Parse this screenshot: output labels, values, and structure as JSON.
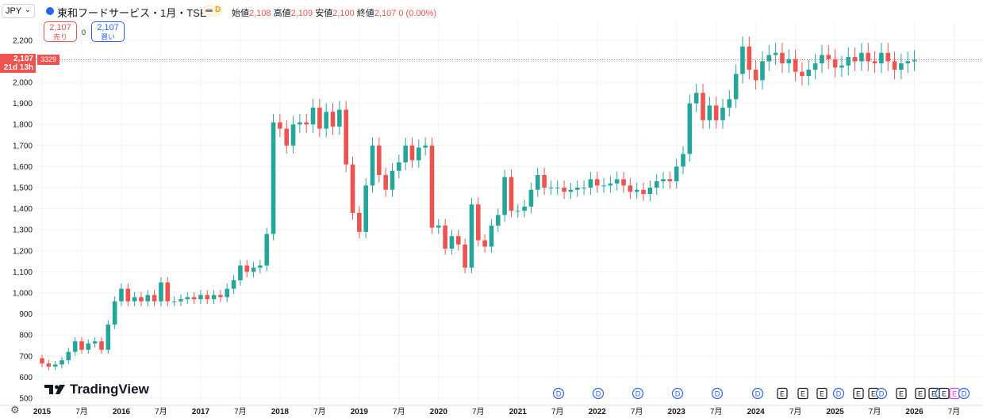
{
  "header": {
    "currency": "JPY",
    "symbol_title": "東和フードサービス・1月・TSE",
    "delay_letter": "D",
    "ohlc": {
      "open_label": "始値",
      "open": "2,108",
      "high_label": "高値",
      "high": "2,109",
      "low_label": "安値",
      "low": "2,100",
      "close_label": "終値",
      "close": "2,107",
      "change": "0 (0.00%)"
    }
  },
  "trade": {
    "sell_price": "2,107",
    "sell_label": "売り",
    "spread": "0",
    "buy_price": "2,107",
    "buy_label": "買い"
  },
  "price_tag": {
    "price": "2,107",
    "countdown": "21d 13h",
    "symbol_code": "3329"
  },
  "branding": {
    "logo_text": "TradingView"
  },
  "icons": {
    "settings": "gear-icon",
    "chevron": "chevron-down-icon",
    "symbol": "exchange-icon"
  },
  "colors": {
    "up": "#26a69a",
    "down": "#ef5350",
    "grid": "#f0f3fa",
    "dividend": "#2962ff",
    "earnings": "#131722",
    "future_earnings": "#e040fb"
  },
  "chart_data": {
    "type": "candlestick",
    "interval": "1M",
    "ylim": [
      500,
      2250
    ],
    "y_ticks": [
      500,
      600,
      700,
      800,
      900,
      1000,
      1100,
      1200,
      1300,
      1400,
      1500,
      1600,
      1700,
      1800,
      1900,
      2000,
      2100,
      2200
    ],
    "y_tick_labels": [
      "500",
      "600",
      "700",
      "800",
      "900",
      "1,000",
      "1,100",
      "1,200",
      "1,300",
      "1,400",
      "1,500",
      "1,600",
      "1,700",
      "1,800",
      "1,900",
      "2,000",
      "2,100",
      "2,200"
    ],
    "x_ticks": [
      {
        "label": "2015",
        "year": true
      },
      {
        "label": "7月",
        "year": false
      },
      {
        "label": "2016",
        "year": true
      },
      {
        "label": "7月",
        "year": false
      },
      {
        "label": "2017",
        "year": true
      },
      {
        "label": "7月",
        "year": false
      },
      {
        "label": "2018",
        "year": true
      },
      {
        "label": "7月",
        "year": false
      },
      {
        "label": "2019",
        "year": true
      },
      {
        "label": "7月",
        "year": false
      },
      {
        "label": "2020",
        "year": true
      },
      {
        "label": "7月",
        "year": false
      },
      {
        "label": "2021",
        "year": true
      },
      {
        "label": "7月",
        "year": false
      },
      {
        "label": "2022",
        "year": true
      },
      {
        "label": "7月",
        "year": false
      },
      {
        "label": "2023",
        "year": true
      },
      {
        "label": "7月",
        "year": false
      },
      {
        "label": "2024",
        "year": true
      },
      {
        "label": "7月",
        "year": false
      },
      {
        "label": "2025",
        "year": true
      },
      {
        "label": "7月",
        "year": false
      },
      {
        "label": "2026",
        "year": true
      },
      {
        "label": "7月",
        "year": false
      }
    ],
    "candle_closes": [
      665,
      650,
      660,
      680,
      720,
      770,
      730,
      760,
      770,
      730,
      850,
      960,
      1020,
      960,
      980,
      960,
      990,
      960,
      1050,
      960,
      960,
      970,
      980,
      970,
      990,
      970,
      990,
      980,
      1020,
      1060,
      1130,
      1100,
      1120,
      1130,
      1280,
      1810,
      1780,
      1700,
      1800,
      1810,
      1800,
      1880,
      1780,
      1860,
      1790,
      1870,
      1610,
      1380,
      1290,
      1510,
      1700,
      1560,
      1490,
      1580,
      1620,
      1700,
      1630,
      1690,
      1700,
      1310,
      1320,
      1210,
      1270,
      1230,
      1120,
      1420,
      1250,
      1220,
      1320,
      1370,
      1550,
      1390,
      1390,
      1410,
      1490,
      1560,
      1500,
      1500,
      1500,
      1480,
      1490,
      1500,
      1500,
      1540,
      1510,
      1510,
      1520,
      1540,
      1510,
      1480,
      1490,
      1470,
      1500,
      1530,
      1540,
      1530,
      1600,
      1660,
      1900,
      1950,
      1820,
      1890,
      1820,
      1880,
      1920,
      2040,
      2170,
      2060,
      2010,
      2100,
      2130,
      2140,
      2090,
      2110,
      2050,
      2030,
      2060,
      2090,
      2130,
      2110,
      2070,
      2080,
      2120,
      2100,
      2140,
      2100,
      2090,
      2140,
      2100,
      2060,
      2090,
      2100,
      2107
    ],
    "first_open": 690,
    "events": [
      {
        "type": "dividend",
        "label": "D"
      },
      {
        "type": "dividend",
        "label": "D"
      },
      {
        "type": "dividend",
        "label": "D"
      },
      {
        "type": "dividend",
        "label": "D"
      },
      {
        "type": "dividend",
        "label": "D"
      },
      {
        "type": "dividend",
        "label": "D"
      },
      {
        "type": "earnings",
        "label": "E"
      },
      {
        "type": "earnings",
        "label": "E"
      },
      {
        "type": "earnings",
        "label": "E"
      },
      {
        "type": "dividend",
        "label": "D"
      },
      {
        "type": "earnings",
        "label": "E"
      },
      {
        "type": "earnings",
        "label": "E"
      },
      {
        "type": "dividend",
        "label": "D"
      },
      {
        "type": "earnings",
        "label": "E"
      },
      {
        "type": "earnings",
        "label": "E"
      },
      {
        "type": "earnings",
        "label": "E"
      },
      {
        "type": "dividend",
        "label": "D"
      },
      {
        "type": "earnings",
        "label": "E"
      },
      {
        "type": "future_earnings",
        "label": "E"
      },
      {
        "type": "dividend",
        "label": "D"
      }
    ]
  }
}
